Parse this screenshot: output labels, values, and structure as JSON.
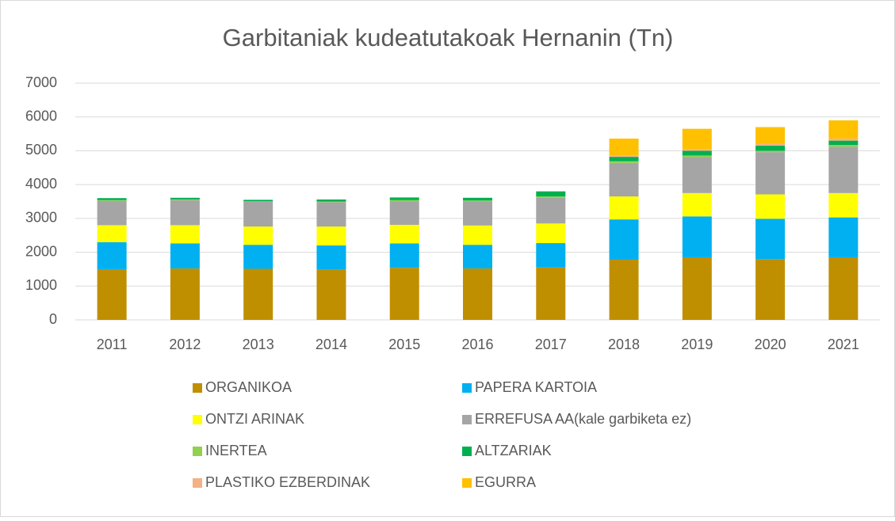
{
  "chart_data": {
    "type": "stacked-bar",
    "title": "Garbitaniak kudeatutakoak Hernanin (Tn)",
    "categories": [
      "2011",
      "2012",
      "2013",
      "2014",
      "2015",
      "2016",
      "2017",
      "2018",
      "2019",
      "2020",
      "2021"
    ],
    "series": [
      {
        "name": "ORGANIKOA",
        "color": "#bf8f00",
        "values": [
          1500,
          1520,
          1510,
          1480,
          1540,
          1520,
          1550,
          1780,
          1850,
          1800,
          1850
        ]
      },
      {
        "name": "PAPERA KARTOIA",
        "color": "#00b0f0",
        "values": [
          800,
          740,
          710,
          720,
          720,
          700,
          720,
          1190,
          1210,
          1190,
          1180
        ]
      },
      {
        "name": "ONTZI ARINAK",
        "color": "#ffff00",
        "values": [
          500,
          540,
          540,
          560,
          550,
          570,
          580,
          680,
          690,
          720,
          720
        ]
      },
      {
        "name": "ERREFUSA AA(kale garbiketa ez)",
        "color": "#a5a5a5",
        "values": [
          720,
          740,
          740,
          720,
          700,
          720,
          770,
          990,
          1060,
          1250,
          1370
        ]
      },
      {
        "name": "INERTEA",
        "color": "#92d050",
        "values": [
          20,
          20,
          10,
          20,
          30,
          20,
          30,
          50,
          50,
          40,
          50
        ]
      },
      {
        "name": "ALTZARIAK",
        "color": "#00b050",
        "values": [
          60,
          50,
          40,
          60,
          80,
          80,
          150,
          130,
          140,
          150,
          130
        ]
      },
      {
        "name": "PLASTIKO EZBERDINAK",
        "color": "#f4b183",
        "values": [
          0,
          0,
          0,
          0,
          0,
          0,
          0,
          40,
          50,
          60,
          60
        ]
      },
      {
        "name": "EGURRA",
        "color": "#ffc000",
        "values": [
          0,
          0,
          0,
          0,
          0,
          0,
          0,
          500,
          600,
          490,
          540
        ]
      }
    ],
    "ylim": [
      0,
      7000
    ],
    "yticks": [
      0,
      1000,
      2000,
      3000,
      4000,
      5000,
      6000,
      7000
    ],
    "grid": true
  }
}
